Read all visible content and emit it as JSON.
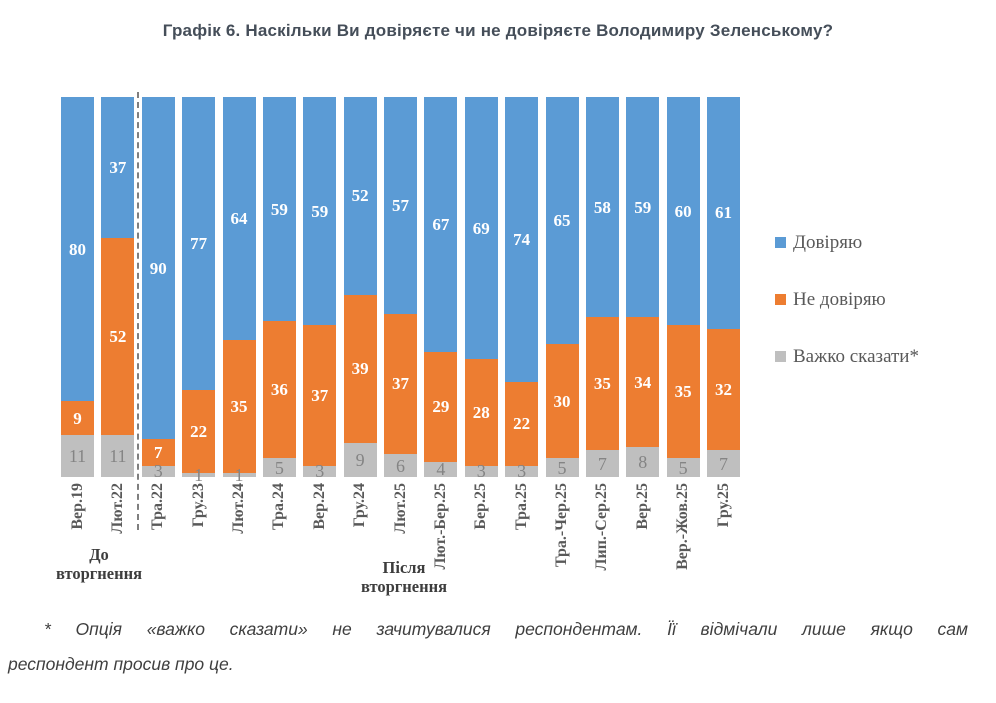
{
  "chart_data": {
    "type": "bar",
    "stacked": true,
    "ylim": [
      0,
      100
    ],
    "grid": false,
    "legend_position": "right",
    "title": "Графік 6. Наскільки Ви довіряєте чи не довіряєте Володимиру Зеленському?",
    "categories": [
      "Вер.19",
      "Лют.22",
      "Тра.22",
      "Гру.23",
      "Лют.24",
      "Тра.24",
      "Вер.24",
      "Гру.24",
      "Лют.25",
      "Лют.-Бер.25",
      "Бер.25",
      "Тра.25",
      "Тра.-Чер.25",
      "Лип.-Сер.25",
      "Вер.25",
      "Вер.-Жов.25",
      "Гру.25"
    ],
    "series": [
      {
        "name": "Довіряю",
        "color": "#5B9BD5",
        "label_color": "#FFFFFF",
        "values": [
          80,
          37,
          90,
          77,
          64,
          59,
          59,
          52,
          57,
          67,
          69,
          74,
          65,
          58,
          59,
          60,
          61
        ]
      },
      {
        "name": "Не довіряю",
        "color": "#ED7D31",
        "label_color": "#FFFFFF",
        "values": [
          9,
          52,
          7,
          22,
          35,
          36,
          37,
          39,
          37,
          29,
          28,
          22,
          30,
          35,
          34,
          35,
          32
        ]
      },
      {
        "name": "Важко сказати*",
        "color": "#BFBFBF",
        "label_color": "#848484",
        "values": [
          11,
          11,
          3,
          1,
          1,
          5,
          3,
          9,
          6,
          4,
          3,
          3,
          5,
          7,
          8,
          5,
          7
        ]
      }
    ],
    "annotations": {
      "divider_after_category": "Лют.22",
      "group_labels": [
        {
          "text": "До вторгнення",
          "covers": [
            "Вер.19",
            "Лют.22"
          ]
        },
        {
          "text": "Після вторгнення",
          "covers": [
            "Тра.22",
            "Гру.25"
          ]
        }
      ]
    }
  },
  "footnote": {
    "line1": "* Опція «важко сказати» не зачитувалися респондентам. Її відмічали лише якщо сам",
    "line2": "респондент просив про це."
  }
}
